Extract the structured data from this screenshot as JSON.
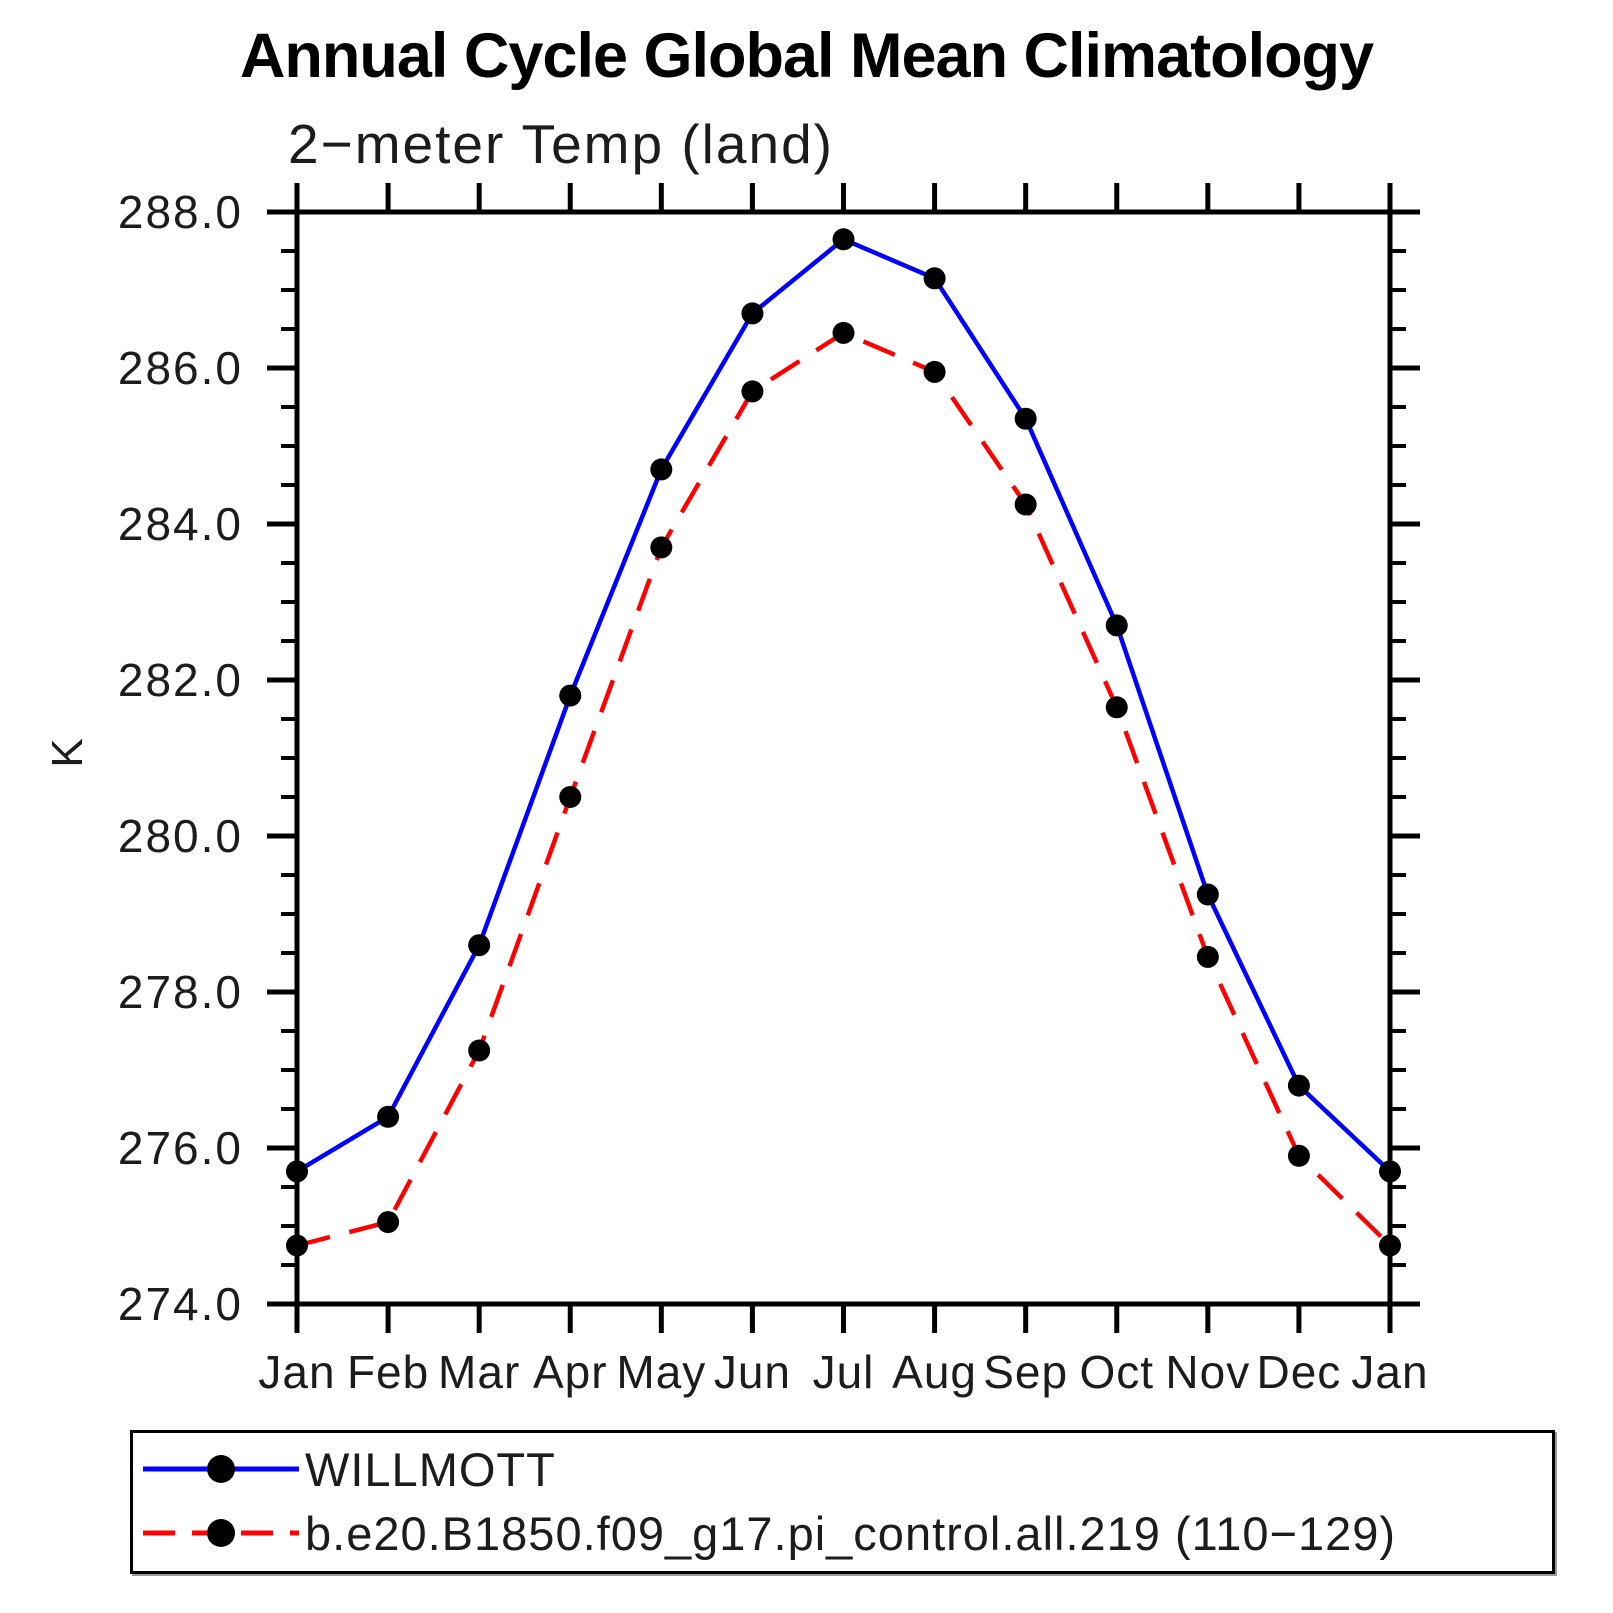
{
  "chart_data": {
    "type": "line",
    "title": "Annual Cycle Global Mean Climatology",
    "subtitle": "2−meter Temp (land)",
    "ylabel": "K",
    "xlabel": "",
    "categories": [
      "Jan",
      "Feb",
      "Mar",
      "Apr",
      "May",
      "Jun",
      "Jul",
      "Aug",
      "Sep",
      "Oct",
      "Nov",
      "Dec",
      "Jan"
    ],
    "series": [
      {
        "name": "WILLMOTT",
        "color": "#0000ff",
        "line_style": "solid",
        "marker": "filled-circle",
        "marker_color": "#000000",
        "values": [
          275.7,
          276.4,
          278.6,
          281.8,
          284.7,
          286.7,
          287.65,
          287.15,
          285.35,
          282.7,
          279.25,
          276.8,
          275.7
        ]
      },
      {
        "name": "b.e20.B1850.f09_g17.pi_control.all.219 (110−129)",
        "color": "#ff0000",
        "line_style": "dashed",
        "marker": "filled-circle",
        "marker_color": "#000000",
        "values": [
          274.75,
          275.05,
          277.25,
          280.5,
          283.7,
          285.7,
          286.45,
          285.95,
          284.25,
          281.65,
          278.45,
          275.9,
          274.75
        ]
      }
    ],
    "ylim": [
      274,
      288
    ],
    "yticks_major": [
      274,
      276,
      278,
      280,
      282,
      284,
      286,
      288
    ],
    "ytick_minor_step": 0.5,
    "ytick_label_decimals": 1,
    "grid": false,
    "axis_color": "#000000",
    "legend_position": "bottom-left-box"
  }
}
